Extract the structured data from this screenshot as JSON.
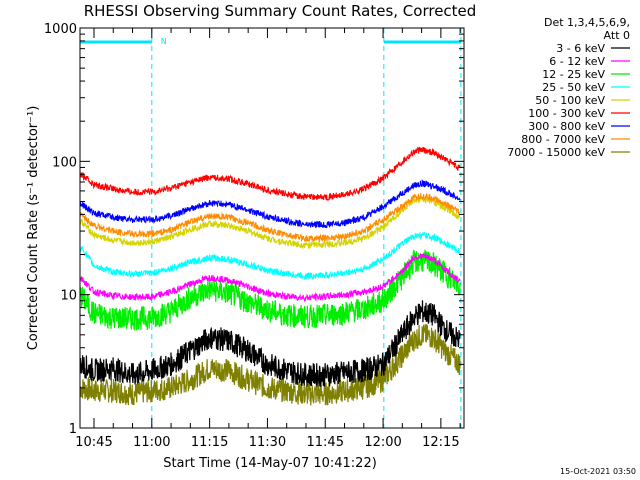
{
  "chart_data": {
    "type": "line",
    "title": "RHESSI Observing Summary Count Rates, Corrected",
    "xlabel": "Start Time (14-May-07 10:41:22)",
    "ylabel": "Corrected Count Rate (s⁻¹ detector⁻¹)",
    "yscale": "log",
    "ylim": [
      1,
      1000
    ],
    "xlim_minutes": [
      41.37,
      141.0
    ],
    "xticks": [
      {
        "label": "10:45",
        "minute": 45
      },
      {
        "label": "11:00",
        "minute": 60
      },
      {
        "label": "11:15",
        "minute": 75
      },
      {
        "label": "11:30",
        "minute": 90
      },
      {
        "label": "11:45",
        "minute": 105
      },
      {
        "label": "12:00",
        "minute": 120
      },
      {
        "label": "12:15",
        "minute": 135
      }
    ],
    "yticks": [
      {
        "label": "1",
        "value": 1
      },
      {
        "label": "10",
        "value": 10
      },
      {
        "label": "100",
        "value": 100
      },
      {
        "label": "1000",
        "value": 1000
      }
    ],
    "grid": false,
    "legend_position": "right",
    "legend_header": [
      "Det 1,3,4,5,6,9,",
      "Att 0"
    ],
    "timestamp": "15-Oct-2021 03:50",
    "night_marker": "N",
    "night_band_color": "#00e5ff",
    "night_intervals_minutes": [
      [
        41.37,
        60.0
      ],
      [
        120.2,
        140.2
      ]
    ],
    "x": [
      41.5,
      45,
      50,
      55,
      60,
      65,
      70,
      75,
      80,
      85,
      90,
      95,
      100,
      105,
      110,
      115,
      120,
      125,
      128,
      130,
      133,
      136,
      140
    ],
    "series": [
      {
        "name": "3 - 6 keV",
        "color": "#000000",
        "noisy": true,
        "values": [
          3.0,
          2.7,
          2.8,
          2.5,
          2.7,
          3.0,
          3.8,
          4.8,
          4.5,
          3.8,
          3.0,
          2.7,
          2.5,
          2.5,
          2.6,
          2.7,
          3.0,
          5.0,
          6.8,
          7.5,
          7.0,
          5.5,
          4.5
        ]
      },
      {
        "name": "6 - 12 keV",
        "color": "#ff00ff",
        "values": [
          13.5,
          10.5,
          9.8,
          9.6,
          9.6,
          10.5,
          12.0,
          13.5,
          12.8,
          11.5,
          10.2,
          9.7,
          9.5,
          9.7,
          10.0,
          10.5,
          11.5,
          15.0,
          19.0,
          19.5,
          18.5,
          15.5,
          12.5
        ]
      },
      {
        "name": "12 - 25 keV",
        "color": "#00ee00",
        "noisy": true,
        "values": [
          10.0,
          7.2,
          6.7,
          6.6,
          6.7,
          7.5,
          9.5,
          11.0,
          10.2,
          8.8,
          7.7,
          7.0,
          6.8,
          7.0,
          7.3,
          7.8,
          9.0,
          13.5,
          17.5,
          18.0,
          17.0,
          14.5,
          11.5
        ]
      },
      {
        "name": "25 - 50 keV",
        "color": "#00ffff",
        "values": [
          23.0,
          16.5,
          14.8,
          14.3,
          14.5,
          15.8,
          17.5,
          19.0,
          18.3,
          16.8,
          15.2,
          14.3,
          13.8,
          14.0,
          14.5,
          15.5,
          18.5,
          24.0,
          27.5,
          28.0,
          27.0,
          24.5,
          21.0
        ]
      },
      {
        "name": "50 - 100 keV",
        "color": "#d4d400",
        "values": [
          36.0,
          28.0,
          25.5,
          24.5,
          24.8,
          27.0,
          31.0,
          34.0,
          33.0,
          30.0,
          26.5,
          24.5,
          23.5,
          23.8,
          24.5,
          26.5,
          32.0,
          43.0,
          50.0,
          52.0,
          50.0,
          45.0,
          37.0
        ]
      },
      {
        "name": "100 - 300 keV",
        "color": "#ff0000",
        "values": [
          80.0,
          67.0,
          62.0,
          59.0,
          59.0,
          63.0,
          70.0,
          76.0,
          74.0,
          68.0,
          61.0,
          57.0,
          54.0,
          54.0,
          56.0,
          62.0,
          75.0,
          100.0,
          118.0,
          122.0,
          117.0,
          104.0,
          88.0
        ]
      },
      {
        "name": "300 - 800 keV",
        "color": "#0000ff",
        "values": [
          48.0,
          41.0,
          38.0,
          36.5,
          36.5,
          39.0,
          44.0,
          48.5,
          47.5,
          43.0,
          38.5,
          35.5,
          33.5,
          33.5,
          34.5,
          38.0,
          45.5,
          58.0,
          66.0,
          68.0,
          66.0,
          60.0,
          52.0
        ]
      },
      {
        "name": "800 - 7000 keV",
        "color": "#ff8c00",
        "values": [
          40.0,
          33.0,
          30.0,
          28.5,
          28.5,
          30.5,
          35.0,
          39.0,
          38.0,
          34.5,
          30.5,
          28.0,
          26.5,
          26.5,
          27.5,
          30.0,
          36.5,
          46.0,
          53.0,
          55.0,
          53.0,
          48.0,
          41.0
        ]
      },
      {
        "name": "7000 - 15000 keV",
        "color": "#808000",
        "noisy": true,
        "values": [
          2.0,
          1.9,
          1.9,
          1.8,
          1.9,
          2.0,
          2.3,
          2.8,
          2.7,
          2.3,
          2.0,
          1.9,
          1.8,
          1.8,
          1.9,
          2.0,
          2.3,
          3.5,
          4.6,
          5.0,
          4.8,
          3.8,
          3.0
        ]
      }
    ]
  }
}
